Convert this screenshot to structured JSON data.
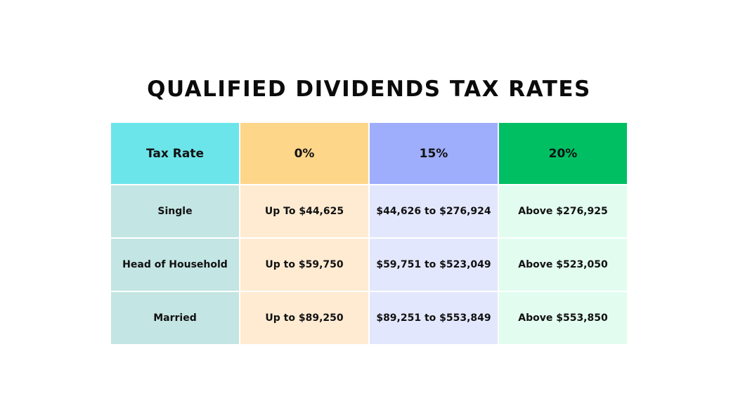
{
  "title": "QUALIFIED DIVIDENDS TAX RATES",
  "table": {
    "headers": [
      "Tax Rate",
      "0%",
      "15%",
      "20%"
    ],
    "rows": [
      {
        "status": "Single",
        "rate_0": "Up To $44,625",
        "rate_15": "$44,626 to $276,924",
        "rate_20": "Above $276,925"
      },
      {
        "status": "Head of Household",
        "rate_0": "Up to $59,750",
        "rate_15": "$59,751 to $523,049",
        "rate_20": "Above $523,050"
      },
      {
        "status": "Married",
        "rate_0": "Up to $89,250",
        "rate_15": "$89,251 to $553,849",
        "rate_20": "Above $553,850"
      }
    ]
  },
  "colors": {
    "header_label": "#6ce5ea",
    "header_0": "#fed68a",
    "header_15": "#9eaefc",
    "header_20": "#00bf63",
    "cell_label": "#c3e5e3",
    "cell_0": "#ffebd2",
    "cell_15": "#e3e7fd",
    "cell_20": "#e2fdf0"
  }
}
